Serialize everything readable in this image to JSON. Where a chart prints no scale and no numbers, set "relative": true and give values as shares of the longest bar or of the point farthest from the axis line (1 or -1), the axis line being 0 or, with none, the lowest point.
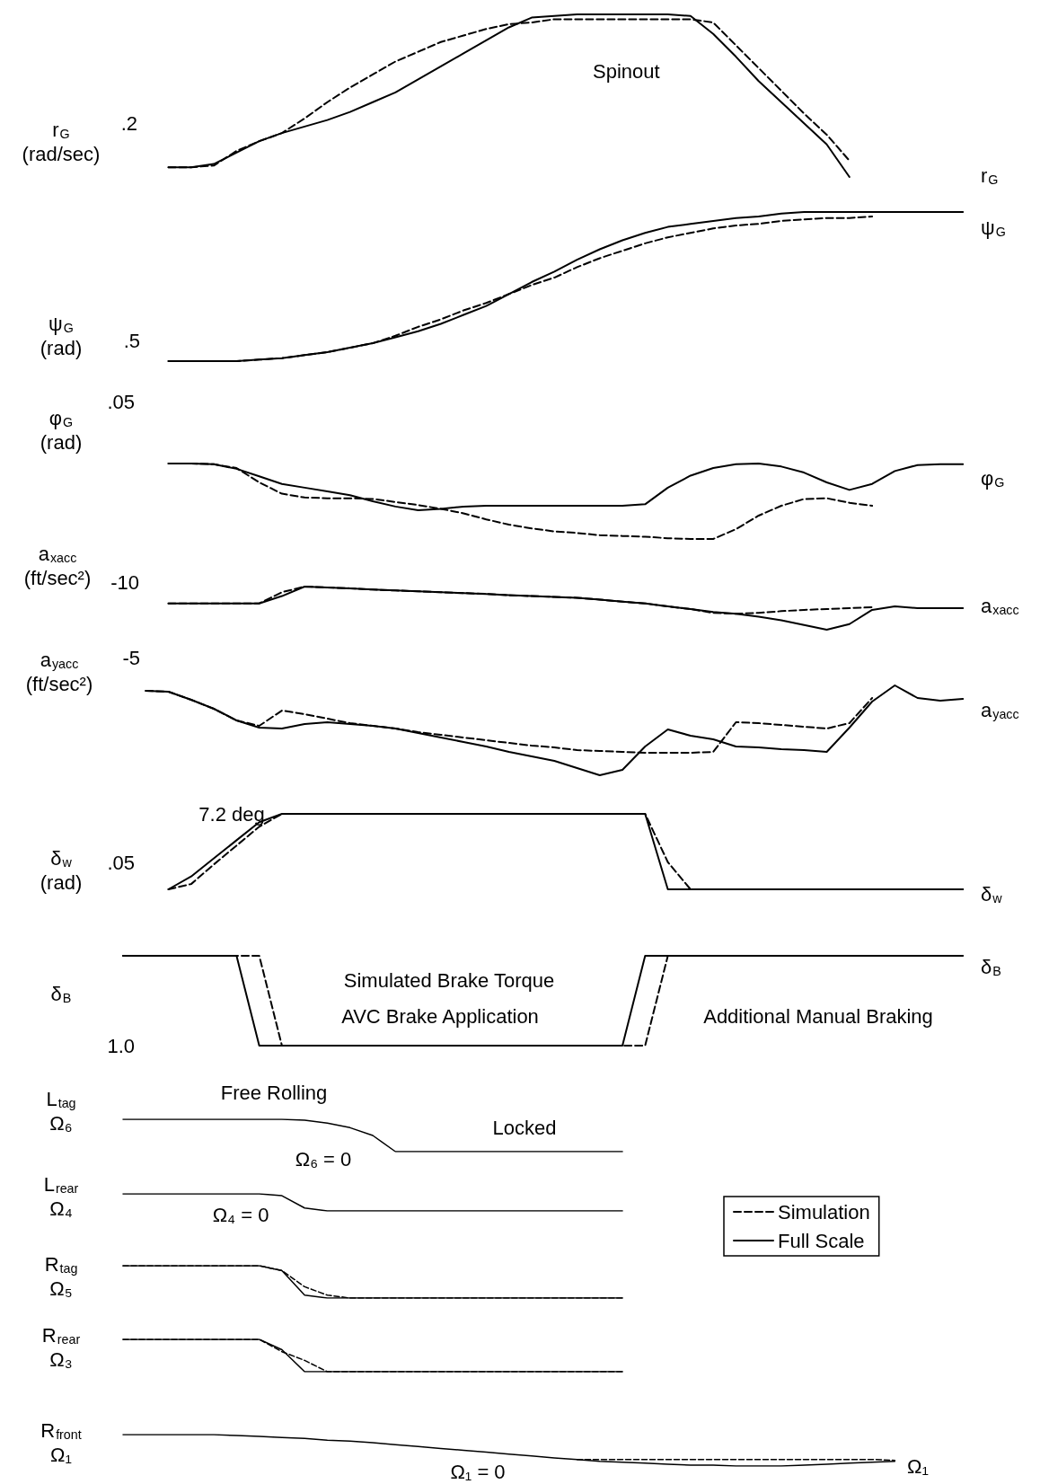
{
  "chart_data": [
    {
      "type": "line",
      "relative": true,
      "ylabel": "r$_{G}$\n(rad/sec)",
      "annotations": [
        ".2",
        "Spinout",
        "r$_{G}$"
      ],
      "categories": [
        null,
        null,
        null,
        null,
        null,
        null,
        null,
        null,
        null,
        null,
        null,
        null,
        null,
        null,
        null,
        null,
        null,
        null,
        null,
        null,
        null,
        null,
        null,
        null,
        null,
        null,
        null,
        null,
        null,
        null,
        null,
        null,
        null,
        null,
        null,
        null,
        null,
        null,
        null,
        null,
        null
      ],
      "series": [
        {
          "color": "#000000",
          "line_style": "dashed",
          "values": [
            null,
            null,
            0.06,
            0.06,
            0.07,
            0.16,
            0.22,
            0.27,
            0.36,
            0.46,
            0.55,
            0.63,
            0.71,
            0.77,
            0.83,
            0.87,
            0.91,
            0.94,
            0.95,
            0.97,
            0.97,
            0.97,
            0.97,
            0.97,
            0.97,
            0.97,
            0.95,
            0.81,
            0.67,
            0.53,
            0.39,
            0.26,
            0.1,
            null,
            null,
            null,
            null,
            null,
            null,
            null,
            null
          ]
        },
        {
          "color": "#000000",
          "line_style": "solid",
          "values": [
            null,
            null,
            0.06,
            0.06,
            0.08,
            0.15,
            0.22,
            0.27,
            0.31,
            0.35,
            0.4,
            0.46,
            0.52,
            0.6,
            0.68,
            0.76,
            0.84,
            0.92,
            0.98,
            0.99,
            1,
            1,
            1,
            1,
            1,
            0.99,
            0.88,
            0.74,
            0.59,
            0.46,
            0.33,
            0.2,
            0,
            null,
            null,
            null,
            null,
            null,
            null,
            null,
            null
          ]
        }
      ]
    },
    {
      "type": "line",
      "relative": true,
      "ylabel": "ψ$_{G}$\n(rad)",
      "annotations": [
        ".5",
        "ψ$_{G}$"
      ],
      "categories": [
        null,
        null,
        null,
        null,
        null,
        null,
        null,
        null,
        null,
        null,
        null,
        null,
        null,
        null,
        null,
        null,
        null,
        null,
        null,
        null,
        null,
        null,
        null,
        null,
        null,
        null,
        null,
        null,
        null,
        null,
        null,
        null,
        null,
        null,
        null,
        null,
        null,
        null,
        null,
        null,
        null
      ],
      "series": [
        {
          "color": "#000000",
          "line_style": "dashed",
          "values": [
            null,
            null,
            0,
            0,
            0,
            0,
            0.01,
            0.02,
            0.04,
            0.06,
            0.09,
            0.12,
            0.17,
            0.23,
            0.28,
            0.34,
            0.39,
            0.45,
            0.51,
            0.56,
            0.63,
            0.69,
            0.74,
            0.79,
            0.83,
            0.86,
            0.89,
            0.91,
            0.92,
            0.94,
            0.95,
            0.96,
            0.96,
            0.97,
            null,
            null,
            null,
            null,
            null,
            null,
            null
          ]
        },
        {
          "color": "#000000",
          "line_style": "solid",
          "values": [
            null,
            null,
            0,
            0,
            0,
            0,
            0.01,
            0.02,
            0.04,
            0.06,
            0.09,
            0.12,
            0.16,
            0.2,
            0.25,
            0.31,
            0.37,
            0.45,
            0.53,
            0.6,
            0.68,
            0.75,
            0.81,
            0.86,
            0.9,
            0.92,
            0.94,
            0.96,
            0.97,
            0.99,
            1,
            1,
            1,
            1,
            1,
            1,
            1,
            1,
            null,
            null,
            null
          ]
        }
      ]
    },
    {
      "type": "line",
      "relative": true,
      "ylabel": "φ$_{G}$\n(rad)",
      "annotations": [
        ".05",
        "φ$_{G}$"
      ],
      "categories": [
        null,
        null,
        null,
        null,
        null,
        null,
        null,
        null,
        null,
        null,
        null,
        null,
        null,
        null,
        null,
        null,
        null,
        null,
        null,
        null,
        null,
        null,
        null,
        null,
        null,
        null,
        null,
        null,
        null,
        null,
        null,
        null,
        null,
        null,
        null,
        null,
        null,
        null,
        null,
        null,
        null
      ],
      "series": [
        {
          "color": "#000000",
          "line_style": "dashed",
          "values": [
            null,
            null,
            1,
            1,
            0.99,
            0.94,
            0.75,
            0.6,
            0.55,
            0.54,
            0.54,
            0.53,
            0.49,
            0.45,
            0.4,
            0.34,
            0.26,
            0.19,
            0.14,
            0.1,
            0.08,
            0.05,
            0.04,
            0.03,
            0.01,
            0,
            0,
            0.13,
            0.31,
            0.44,
            0.53,
            0.54,
            0.48,
            0.44,
            null,
            null,
            null,
            null,
            null,
            null,
            null
          ]
        },
        {
          "color": "#000000",
          "line_style": "solid",
          "values": [
            null,
            null,
            1,
            1,
            0.99,
            0.93,
            0.83,
            0.73,
            0.68,
            0.63,
            0.58,
            0.5,
            0.43,
            0.38,
            0.4,
            0.43,
            0.44,
            0.44,
            0.44,
            0.44,
            0.44,
            0.44,
            0.44,
            0.46,
            0.68,
            0.84,
            0.94,
            0.99,
            1,
            0.96,
            0.88,
            0.75,
            0.65,
            0.73,
            0.9,
            0.98,
            0.99,
            0.99,
            null,
            null,
            null
          ]
        }
      ]
    },
    {
      "type": "line",
      "relative": true,
      "ylabel": "a$_{xacc}$\n(ft/sec²)",
      "annotations": [
        "-10",
        "a$_{xacc}$"
      ],
      "categories": [
        null,
        null,
        null,
        null,
        null,
        null,
        null,
        null,
        null,
        null,
        null,
        null,
        null,
        null,
        null,
        null,
        null,
        null,
        null,
        null,
        null,
        null,
        null,
        null,
        null,
        null,
        null,
        null,
        null,
        null,
        null,
        null,
        null,
        null,
        null,
        null,
        null,
        null,
        null,
        null,
        null
      ],
      "series": [
        {
          "color": "#000000",
          "line_style": "dashed",
          "values": [
            null,
            null,
            0.61,
            0.61,
            0.61,
            0.61,
            0.61,
            0.87,
            1,
            0.98,
            0.96,
            0.93,
            0.91,
            0.89,
            0.87,
            0.85,
            0.83,
            0.8,
            0.78,
            0.76,
            0.74,
            0.7,
            0.65,
            0.61,
            0.54,
            0.48,
            0.39,
            0.37,
            0.39,
            0.43,
            0.46,
            0.48,
            0.5,
            0.52,
            null,
            null,
            null,
            null,
            null,
            null,
            null
          ]
        },
        {
          "color": "#000000",
          "line_style": "solid",
          "values": [
            null,
            null,
            0.61,
            0.61,
            0.61,
            0.61,
            0.61,
            0.78,
            1,
            0.98,
            0.96,
            0.93,
            0.91,
            0.89,
            0.87,
            0.85,
            0.83,
            0.8,
            0.78,
            0.76,
            0.74,
            0.7,
            0.65,
            0.61,
            0.54,
            0.48,
            0.41,
            0.37,
            0.3,
            0.22,
            0.11,
            0,
            0.13,
            0.46,
            0.54,
            0.5,
            0.5,
            0.5,
            null,
            null,
            null
          ]
        }
      ]
    },
    {
      "type": "line",
      "relative": true,
      "ylabel": "a$_{yacc}$\n(ft/sec²)",
      "annotations": [
        "-5",
        "a$_{yacc}$"
      ],
      "categories": [
        null,
        null,
        null,
        null,
        null,
        null,
        null,
        null,
        null,
        null,
        null,
        null,
        null,
        null,
        null,
        null,
        null,
        null,
        null,
        null,
        null,
        null,
        null,
        null,
        null,
        null,
        null,
        null,
        null,
        null,
        null,
        null,
        null,
        null,
        null,
        null,
        null,
        null,
        null,
        null,
        null
      ],
      "series": [
        {
          "color": "#000000",
          "line_style": "dashed",
          "values": [
            null,
            0.94,
            0.93,
            0.84,
            0.74,
            0.61,
            0.55,
            0.72,
            0.68,
            0.63,
            0.58,
            0.55,
            0.52,
            0.48,
            0.45,
            0.42,
            0.39,
            0.36,
            0.33,
            0.31,
            0.28,
            0.27,
            0.26,
            0.25,
            0.25,
            0.25,
            0.26,
            0.59,
            0.58,
            0.56,
            0.54,
            0.52,
            0.58,
            0.86,
            null,
            null,
            null,
            null,
            null,
            null,
            null
          ]
        },
        {
          "color": "#000000",
          "line_style": "solid",
          "values": [
            null,
            0.94,
            0.93,
            0.84,
            0.74,
            0.61,
            0.53,
            0.52,
            0.57,
            0.59,
            0.57,
            0.55,
            0.52,
            0.47,
            0.42,
            0.37,
            0.32,
            0.26,
            0.21,
            0.16,
            0.08,
            0,
            0.06,
            0.32,
            0.51,
            0.44,
            0.4,
            0.32,
            0.31,
            0.29,
            0.28,
            0.26,
            0.53,
            0.82,
            1,
            0.86,
            0.83,
            0.85,
            null,
            null,
            null
          ]
        }
      ]
    },
    {
      "type": "line",
      "relative": true,
      "ylabel": "δ$_{w}$\n(rad)",
      "annotations": [
        ".05",
        "7.2 deg",
        "δ$_{w}$"
      ],
      "categories": [
        null,
        null,
        null,
        null,
        null,
        null,
        null,
        null,
        null,
        null,
        null,
        null,
        null,
        null,
        null,
        null,
        null,
        null,
        null,
        null,
        null,
        null,
        null,
        null,
        null,
        null,
        null,
        null,
        null,
        null,
        null,
        null,
        null,
        null,
        null,
        null,
        null,
        null,
        null,
        null,
        null
      ],
      "series": [
        {
          "color": "#000000",
          "line_style": "dashed",
          "values": [
            null,
            null,
            0,
            0.07,
            0.33,
            0.58,
            0.83,
            1,
            1,
            1,
            1,
            1,
            1,
            1,
            1,
            1,
            1,
            1,
            1,
            1,
            1,
            1,
            1,
            1,
            0.36,
            0,
            0,
            0,
            0,
            0,
            0,
            0,
            0,
            0,
            0,
            0,
            0,
            0,
            null,
            null,
            null
          ]
        },
        {
          "color": "#000000",
          "line_style": "solid",
          "values": [
            null,
            null,
            0,
            0.17,
            0.41,
            0.65,
            0.89,
            1,
            1,
            1,
            1,
            1,
            1,
            1,
            1,
            1,
            1,
            1,
            1,
            1,
            1,
            1,
            1,
            1,
            0,
            0,
            0,
            0,
            0,
            0,
            0,
            0,
            0,
            0,
            0,
            0,
            0,
            0,
            null,
            null,
            null
          ]
        }
      ]
    },
    {
      "type": "line",
      "relative": true,
      "ylabel": "δ$_{B}$",
      "annotations": [
        "1.0",
        "δ$_{B}$",
        "Simulated Brake Torque",
        "AVC Brake Application",
        "Additional Manual Braking"
      ],
      "categories": [
        null,
        null,
        null,
        null,
        null,
        null,
        null,
        null,
        null,
        null,
        null,
        null,
        null,
        null,
        null,
        null,
        null,
        null,
        null,
        null,
        null,
        null,
        null,
        null,
        null,
        null,
        null,
        null,
        null,
        null,
        null,
        null,
        null,
        null,
        null,
        null,
        null,
        null,
        null,
        null,
        null
      ],
      "series": [
        {
          "color": "#000000",
          "line_style": "dashed",
          "values": [
            1,
            1,
            1,
            1,
            1,
            1,
            1,
            0,
            0,
            0,
            0,
            0,
            0,
            0,
            0,
            0,
            0,
            0,
            0,
            0,
            0,
            0,
            0,
            0,
            1,
            1,
            1,
            1,
            1,
            1,
            1,
            1,
            1,
            1,
            1,
            1,
            1,
            1,
            null,
            null,
            null
          ]
        },
        {
          "color": "#000000",
          "line_style": "solid",
          "values": [
            1,
            1,
            1,
            1,
            1,
            1,
            0,
            0,
            0,
            0,
            0,
            0,
            0,
            0,
            0,
            0,
            0,
            0,
            0,
            0,
            0,
            0,
            0,
            1,
            1,
            1,
            1,
            1,
            1,
            1,
            1,
            1,
            1,
            1,
            1,
            1,
            1,
            1,
            null,
            null,
            null
          ]
        }
      ]
    },
    {
      "type": "line",
      "relative": true,
      "ylabel": "L$_{tag}$\nΩ₆",
      "annotations": [
        "Free Rolling",
        "Ω₆ = 0",
        "Locked"
      ],
      "categories": [
        null,
        null,
        null,
        null,
        null,
        null,
        null,
        null,
        null,
        null,
        null,
        null,
        null,
        null,
        null,
        null,
        null,
        null,
        null,
        null,
        null,
        null,
        null,
        null,
        null,
        null,
        null,
        null,
        null,
        null,
        null,
        null,
        null,
        null,
        null,
        null,
        null,
        null,
        null,
        null,
        null
      ],
      "series": [
        {
          "color": "#000000",
          "line_style": "solid",
          "values": [
            1,
            1,
            1,
            1,
            1,
            1,
            1,
            1,
            0.97,
            0.88,
            0.74,
            0.5,
            0,
            0,
            0,
            0,
            0,
            0,
            0,
            0,
            0,
            0,
            0,
            null,
            null,
            null,
            null,
            null,
            null,
            null,
            null,
            null,
            null,
            null,
            null,
            null,
            null,
            null,
            null,
            null,
            null
          ]
        }
      ]
    },
    {
      "type": "line",
      "relative": true,
      "ylabel": "L$_{rear}$\nΩ₄",
      "annotations": [
        "Ω₄ = 0"
      ],
      "categories": [
        null,
        null,
        null,
        null,
        null,
        null,
        null,
        null,
        null,
        null,
        null,
        null,
        null,
        null,
        null,
        null,
        null,
        null,
        null,
        null,
        null,
        null,
        null,
        null,
        null,
        null,
        null,
        null,
        null,
        null,
        null,
        null,
        null,
        null,
        null,
        null,
        null,
        null,
        null,
        null,
        null
      ],
      "series": [
        {
          "color": "#000000",
          "line_style": "solid",
          "values": [
            1,
            1,
            1,
            1,
            1,
            1,
            1,
            0.89,
            0.17,
            0,
            0,
            0,
            0,
            0,
            0,
            0,
            0,
            0,
            0,
            0,
            0,
            0,
            0,
            null,
            null,
            null,
            null,
            null,
            null,
            null,
            null,
            null,
            null,
            null,
            null,
            null,
            null,
            null,
            null,
            null,
            null
          ]
        }
      ]
    },
    {
      "type": "line",
      "relative": true,
      "ylabel": "R$_{tag}$\nΩ₅",
      "legend": "right",
      "categories": [
        null,
        null,
        null,
        null,
        null,
        null,
        null,
        null,
        null,
        null,
        null,
        null,
        null,
        null,
        null,
        null,
        null,
        null,
        null,
        null,
        null,
        null,
        null,
        null,
        null,
        null,
        null,
        null,
        null,
        null,
        null,
        null,
        null,
        null,
        null,
        null,
        null,
        null,
        null,
        null,
        null
      ],
      "series": [
        {
          "name": "Simulation",
          "color": "#000000",
          "line_style": "dashed",
          "values": [
            1,
            1,
            1,
            1,
            1,
            1,
            1,
            0.85,
            0.35,
            0.09,
            0,
            0,
            0,
            0,
            0,
            0,
            0,
            0,
            0,
            0,
            0,
            0,
            0,
            null,
            null,
            null,
            null,
            null,
            null,
            null,
            null,
            null,
            null,
            null,
            null,
            null,
            null,
            null,
            null,
            null,
            null
          ]
        },
        {
          "name": "Full Scale",
          "color": "#000000",
          "line_style": "solid",
          "values": [
            1,
            1,
            1,
            1,
            1,
            1,
            1,
            0.85,
            0.09,
            0,
            0,
            0,
            0,
            0,
            0,
            0,
            0,
            0,
            0,
            0,
            0,
            0,
            0,
            null,
            null,
            null,
            null,
            null,
            null,
            null,
            null,
            null,
            null,
            null,
            null,
            null,
            null,
            null,
            null,
            null,
            null
          ]
        }
      ]
    },
    {
      "type": "line",
      "relative": true,
      "ylabel": "R$_{rear}$\nΩ₃",
      "categories": [
        null,
        null,
        null,
        null,
        null,
        null,
        null,
        null,
        null,
        null,
        null,
        null,
        null,
        null,
        null,
        null,
        null,
        null,
        null,
        null,
        null,
        null,
        null,
        null,
        null,
        null,
        null,
        null,
        null,
        null,
        null,
        null,
        null,
        null,
        null,
        null,
        null,
        null,
        null,
        null,
        null
      ],
      "series": [
        {
          "color": "#000000",
          "line_style": "dashed",
          "values": [
            1,
            1,
            1,
            1,
            1,
            1,
            1,
            0.62,
            0.35,
            0,
            0,
            0,
            0,
            0,
            0,
            0,
            0,
            0,
            0,
            0,
            0,
            0,
            0,
            null,
            null,
            null,
            null,
            null,
            null,
            null,
            null,
            null,
            null,
            null,
            null,
            null,
            null,
            null,
            null,
            null,
            null
          ]
        },
        {
          "color": "#000000",
          "line_style": "solid",
          "values": [
            1,
            1,
            1,
            1,
            1,
            1,
            1,
            0.68,
            0,
            0,
            0,
            0,
            0,
            0,
            0,
            0,
            0,
            0,
            0,
            0,
            0,
            0,
            0,
            null,
            null,
            null,
            null,
            null,
            null,
            null,
            null,
            null,
            null,
            null,
            null,
            null,
            null,
            null,
            null,
            null,
            null
          ]
        }
      ]
    },
    {
      "type": "line",
      "relative": true,
      "ylabel": "R$_{front}$\nΩ₁",
      "annotations": [
        "Ω₁ = 0",
        "Ω₁"
      ],
      "categories": [
        null,
        null,
        null,
        null,
        null,
        null,
        null,
        null,
        null,
        null,
        null,
        null,
        null,
        null,
        null,
        null,
        null,
        null,
        null,
        null,
        null,
        null,
        null,
        null,
        null,
        null,
        null,
        null,
        null,
        null,
        null,
        null,
        null,
        null,
        null,
        null,
        null,
        null,
        null,
        null,
        null
      ],
      "series": [
        {
          "color": "#000000",
          "line_style": "dashed",
          "values": [
            null,
            null,
            null,
            null,
            null,
            null,
            null,
            null,
            null,
            null,
            null,
            null,
            null,
            null,
            null,
            null,
            null,
            null,
            null,
            null,
            0.21,
            0.21,
            0.21,
            0.21,
            0.21,
            0.21,
            0.21,
            0.21,
            0.21,
            0.21,
            0.21,
            0.21,
            0.21,
            0.21,
            0.18,
            null,
            null,
            null,
            null,
            null,
            null
          ]
        },
        {
          "color": "#000000",
          "line_style": "solid",
          "values": [
            1,
            1,
            1,
            1,
            1,
            0.97,
            0.94,
            0.91,
            0.88,
            0.82,
            0.79,
            0.74,
            0.68,
            0.62,
            0.56,
            0.5,
            0.44,
            0.38,
            0.32,
            0.26,
            0.21,
            0.15,
            0.12,
            0.09,
            0.06,
            0.03,
            0.03,
            0,
            0,
            0,
            0.03,
            0.06,
            0.09,
            0.12,
            0.15,
            null,
            null,
            null,
            null,
            null,
            null
          ]
        }
      ]
    }
  ]
}
